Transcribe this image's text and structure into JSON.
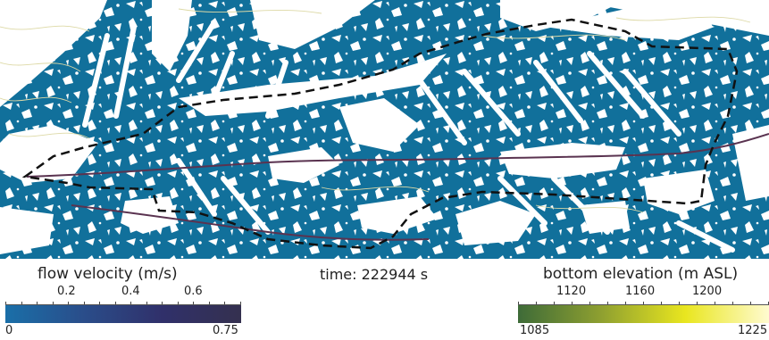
{
  "time_label": "time: 222944 s",
  "velocity_legend": {
    "title": "flow velocity (m/s)",
    "ticks": [
      "0.2",
      "0.4",
      "0.6"
    ],
    "min_label": "0",
    "max_label": "0.75",
    "colors": [
      "#1a6fa8",
      "#2a4d8a",
      "#30306a",
      "#34304f"
    ]
  },
  "elevation_legend": {
    "title": "bottom elevation (m ASL)",
    "ticks": [
      "1120",
      "1160",
      "1200"
    ],
    "min_label": "1085",
    "max_label": "1225",
    "colors": [
      "#3e6b38",
      "#8fa030",
      "#e9e61f",
      "#fffbd0"
    ]
  },
  "map_colors": {
    "water": "#11709b",
    "land": "#ffffff",
    "boundary": "#111111",
    "river": "#5a3350",
    "contour": "#ddd9a6"
  }
}
